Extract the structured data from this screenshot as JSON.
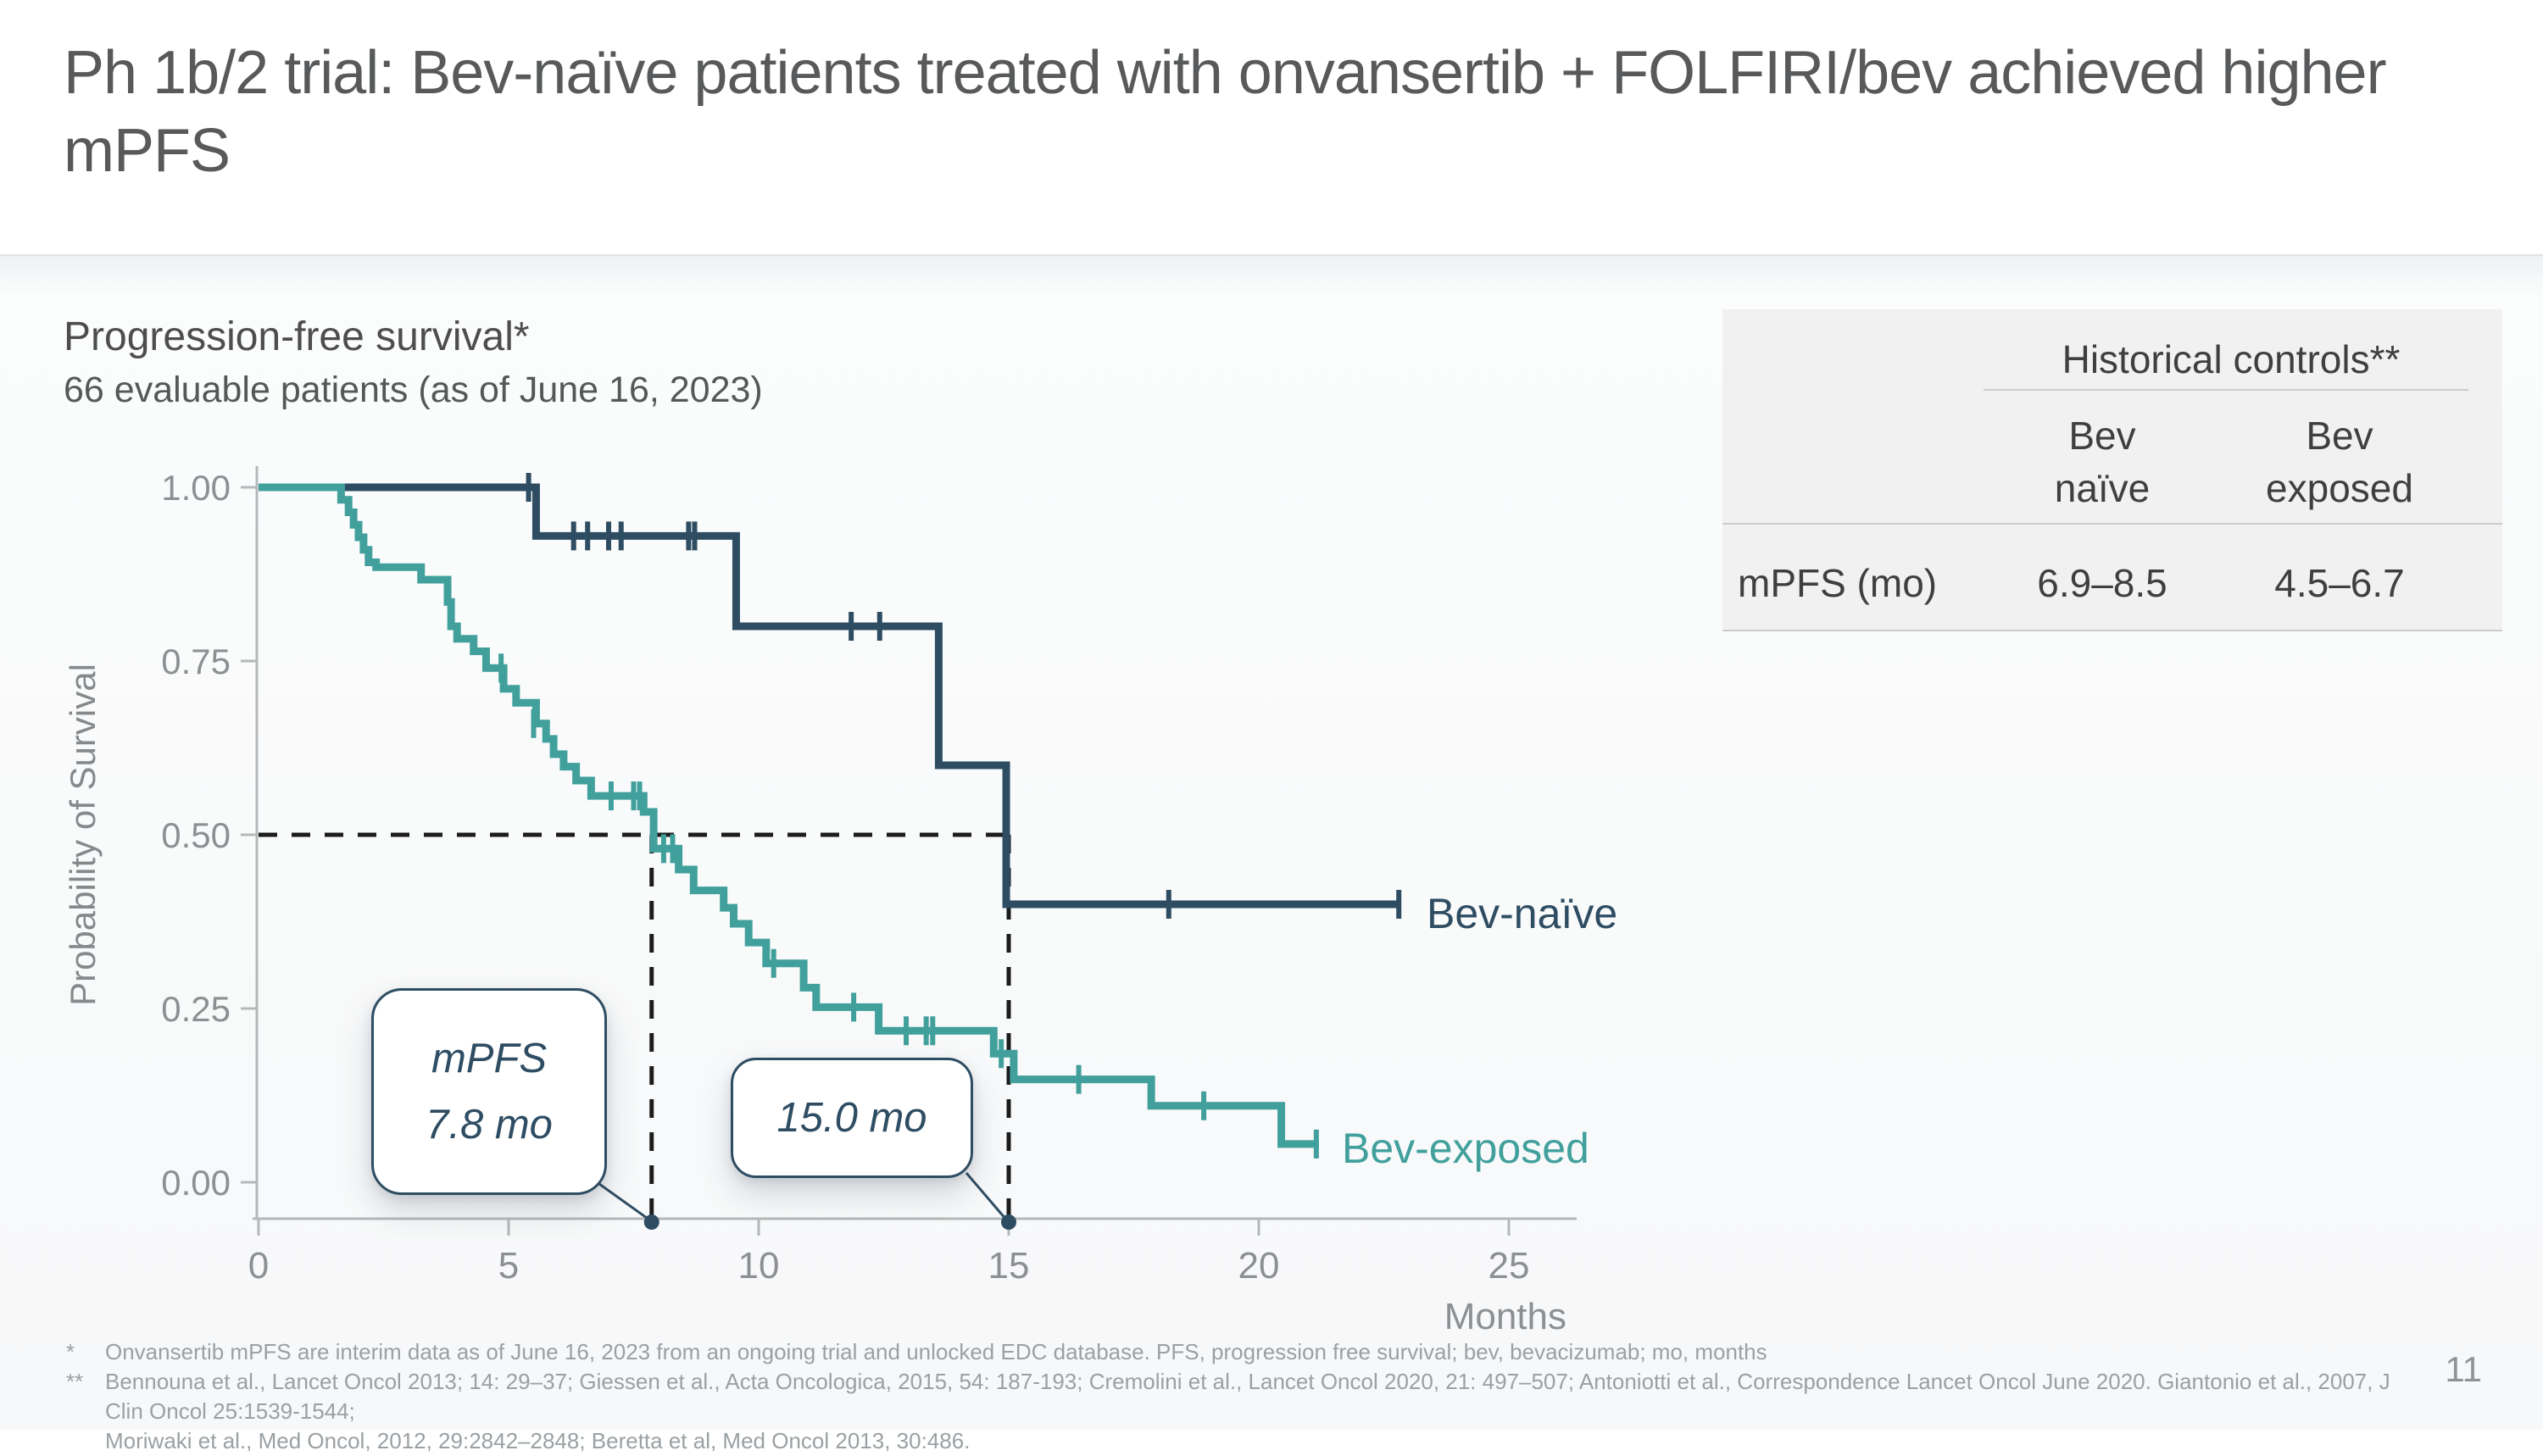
{
  "slide": {
    "title": "Ph 1b/2 trial: Bev-naïve patients treated with onvansertib + FOLFIRI/bev achieved higher mPFS",
    "page_number": "11"
  },
  "chart": {
    "section_title": "Progression-free survival*",
    "subtitle": "66 evaluable patients (as of June 16, 2023)"
  },
  "chart_data": {
    "type": "line",
    "subtype": "kaplan-meier-step",
    "title": "Progression-free survival*",
    "subtitle": "66 evaluable patients (as of June 16, 2023)",
    "xlabel": "Months",
    "ylabel": "Probability of Survival",
    "xlim": [
      0,
      26.5
    ],
    "ylim": [
      0,
      1
    ],
    "grid": false,
    "x_ticks": [
      {
        "value": 0,
        "label": "0"
      },
      {
        "value": 5,
        "label": "5"
      },
      {
        "value": 10,
        "label": "10"
      },
      {
        "value": 15,
        "label": "15"
      },
      {
        "value": 20,
        "label": "20"
      },
      {
        "value": 25,
        "label": "25"
      }
    ],
    "y_ticks": [
      {
        "value": 1.0,
        "label": "1.00"
      },
      {
        "value": 0.75,
        "label": "0.75"
      },
      {
        "value": 0.5,
        "label": "0.50"
      },
      {
        "value": 0.25,
        "label": "0.25"
      },
      {
        "value": 0.0,
        "label": "0.00"
      }
    ],
    "reference_lines": {
      "horizontal": {
        "p": 0.5,
        "from_month": 0,
        "to_month": 15
      },
      "verticals": [
        {
          "month": 7.86,
          "from_p": 0.5,
          "to_p": 0,
          "median_label": "7.8 mo"
        },
        {
          "month": 15.0,
          "from_p": 0.5,
          "to_p": 0,
          "median_label": "15.0 mo"
        }
      ]
    },
    "series": [
      {
        "name": "Bev-naïve",
        "color": "#2e4d63",
        "median_pfs_months": 15.0,
        "start": [
          0,
          1.0
        ],
        "steps": [
          [
            5.55,
            0.93
          ],
          [
            9.55,
            0.8
          ],
          [
            13.6,
            0.6
          ],
          [
            14.95,
            0.4
          ]
        ],
        "end_month": 22.8,
        "censors": [
          [
            5.4,
            1.0
          ],
          [
            6.3,
            0.93
          ],
          [
            6.58,
            0.93
          ],
          [
            7.0,
            0.93
          ],
          [
            7.25,
            0.93
          ],
          [
            8.6,
            0.93
          ],
          [
            8.72,
            0.93
          ],
          [
            11.85,
            0.8
          ],
          [
            12.42,
            0.8
          ],
          [
            18.2,
            0.4
          ],
          [
            22.8,
            0.4
          ]
        ]
      },
      {
        "name": "Bev-exposed",
        "color": "#41a09c",
        "median_pfs_months": 7.8,
        "start": [
          0,
          1.0
        ],
        "steps": [
          [
            1.65,
            0.982
          ],
          [
            1.8,
            0.964
          ],
          [
            1.9,
            0.946
          ],
          [
            2.0,
            0.928
          ],
          [
            2.1,
            0.91
          ],
          [
            2.2,
            0.892
          ],
          [
            2.35,
            0.885
          ],
          [
            3.25,
            0.867
          ],
          [
            3.78,
            0.835
          ],
          [
            3.85,
            0.8
          ],
          [
            3.97,
            0.782
          ],
          [
            4.3,
            0.764
          ],
          [
            4.55,
            0.74
          ],
          [
            4.9,
            0.71
          ],
          [
            5.15,
            0.69
          ],
          [
            5.55,
            0.66
          ],
          [
            5.75,
            0.638
          ],
          [
            5.9,
            0.616
          ],
          [
            6.1,
            0.598
          ],
          [
            6.35,
            0.578
          ],
          [
            6.65,
            0.556
          ],
          [
            7.7,
            0.533
          ],
          [
            7.9,
            0.48
          ],
          [
            8.4,
            0.45
          ],
          [
            8.7,
            0.42
          ],
          [
            9.3,
            0.395
          ],
          [
            9.5,
            0.372
          ],
          [
            9.8,
            0.345
          ],
          [
            10.15,
            0.315
          ],
          [
            10.9,
            0.28
          ],
          [
            11.15,
            0.252
          ],
          [
            12.4,
            0.218
          ],
          [
            14.7,
            0.185
          ],
          [
            15.1,
            0.148
          ],
          [
            17.85,
            0.11
          ],
          [
            20.45,
            0.055
          ]
        ],
        "end_month": 21.2,
        "censors": [
          [
            4.85,
            0.74
          ],
          [
            5.5,
            0.66
          ],
          [
            7.05,
            0.556
          ],
          [
            7.5,
            0.556
          ],
          [
            7.62,
            0.556
          ],
          [
            8.1,
            0.48
          ],
          [
            8.28,
            0.48
          ],
          [
            10.3,
            0.315
          ],
          [
            11.9,
            0.252
          ],
          [
            12.95,
            0.218
          ],
          [
            13.35,
            0.218
          ],
          [
            13.48,
            0.218
          ],
          [
            14.85,
            0.185
          ],
          [
            16.4,
            0.148
          ],
          [
            18.9,
            0.11
          ],
          [
            21.15,
            0.055
          ]
        ]
      }
    ]
  },
  "callouts": [
    {
      "line1": "mPFS",
      "line2": "7.8 mo"
    },
    {
      "line1": "15.0 mo"
    }
  ],
  "table": {
    "header": "Historical controls**",
    "col1_line1": "Bev",
    "col1_line2": "naïve",
    "col2_line1": "Bev",
    "col2_line2": "exposed",
    "row_label": "mPFS (mo)",
    "value1": "6.9–8.5",
    "value2": "4.5–6.7"
  },
  "footnotes": {
    "marker1": "*",
    "line1": "Onvansertib mPFS are interim data as of June 16, 2023 from an ongoing trial and unlocked EDC database. PFS, progression free survival; bev, bevacizumab; mo, months",
    "marker2": "**",
    "line2": "Bennouna et al., Lancet Oncol 2013; 14: 29–37; Giessen et al., Acta Oncologica, 2015, 54: 187-193;  Cremolini et al., Lancet Oncol 2020, 21: 497–507; Antoniotti et al., Correspondence Lancet Oncol June 2020. Giantonio et al., 2007, J Clin Oncol 25:1539-1544;",
    "line3": "Moriwaki et al., Med Oncol, 2012, 29:2842–2848; Beretta et al, Med Oncol 2013, 30:486."
  },
  "colors": {
    "bev_naive": "#2e4d63",
    "bev_exposed": "#41a09c",
    "axis": "#b5b8ba",
    "tick_label": "#8c9093",
    "dashed_reference": "#1c1c1c",
    "table_background": "#f1f1f1",
    "title_text": "#58595b"
  }
}
